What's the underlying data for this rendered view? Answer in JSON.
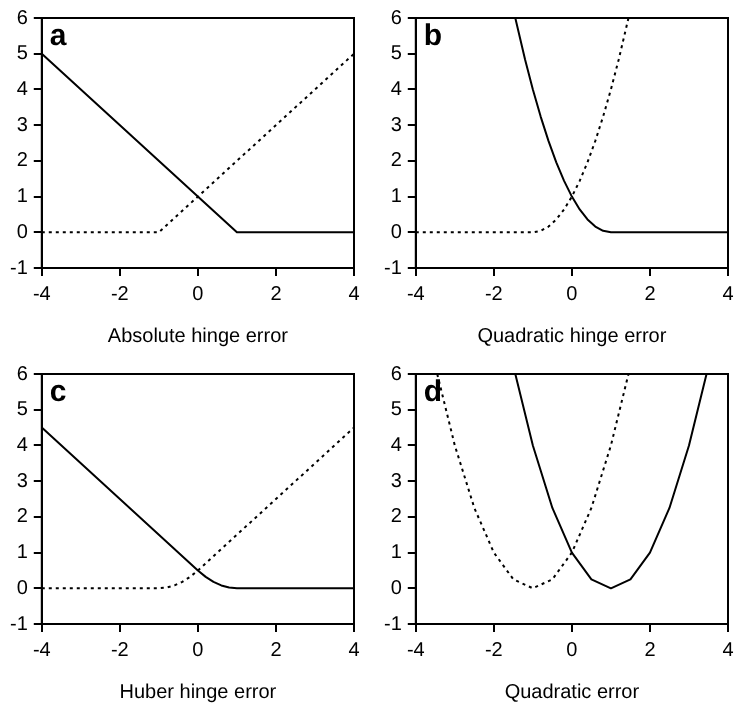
{
  "chart_data": [
    {
      "type": "line",
      "xlabel": "Absolute hinge error",
      "annotations": [
        "a"
      ],
      "xlim": [
        -4,
        4
      ],
      "ylim": [
        -1,
        6
      ],
      "xticks": [
        -4,
        -2,
        0,
        2,
        4
      ],
      "yticks": [
        -1,
        0,
        1,
        2,
        3,
        4,
        5,
        6
      ],
      "marker": "none",
      "line_style": "solid",
      "series": [
        {
          "color": "#000000",
          "x": [
            -4,
            1,
            4
          ],
          "values": [
            5,
            0,
            0
          ]
        },
        {
          "color": "#000000",
          "line_style": "dotted",
          "x": [
            -4,
            -1,
            4
          ],
          "values": [
            0,
            0,
            5
          ]
        }
      ]
    },
    {
      "type": "line",
      "xlabel": "Quadratic hinge error",
      "annotations": [
        "b"
      ],
      "xlim": [
        -4,
        4
      ],
      "ylim": [
        -1,
        6
      ],
      "xticks": [
        -4,
        -2,
        0,
        2,
        4
      ],
      "yticks": [
        -1,
        0,
        1,
        2,
        3,
        4,
        5,
        6
      ],
      "marker": "none",
      "line_style": "solid",
      "series": [
        {
          "color": "#000000",
          "x": [
            -1.45,
            -1.2,
            -1,
            -0.8,
            -0.6,
            -0.4,
            -0.2,
            0,
            0.2,
            0.4,
            0.6,
            0.8,
            1,
            4
          ],
          "values": [
            6,
            4.84,
            4,
            3.24,
            2.56,
            1.96,
            1.44,
            1,
            0.64,
            0.36,
            0.16,
            0.04,
            0,
            0
          ]
        },
        {
          "color": "#000000",
          "line_style": "dotted",
          "x": [
            -4,
            -1,
            -0.8,
            -0.6,
            -0.4,
            -0.2,
            0,
            0.2,
            0.4,
            0.6,
            0.8,
            1,
            1.2,
            1.45
          ],
          "values": [
            0,
            0,
            0.04,
            0.16,
            0.36,
            0.64,
            1,
            1.44,
            1.96,
            2.56,
            3.24,
            4,
            4.84,
            6
          ]
        }
      ]
    },
    {
      "type": "line",
      "xlabel": "Huber hinge error",
      "annotations": [
        "c"
      ],
      "xlim": [
        -4,
        4
      ],
      "ylim": [
        -1,
        6
      ],
      "xticks": [
        -4,
        -2,
        0,
        2,
        4
      ],
      "yticks": [
        -1,
        0,
        1,
        2,
        3,
        4,
        5,
        6
      ],
      "marker": "none",
      "line_style": "solid",
      "series": [
        {
          "color": "#000000",
          "x": [
            -4,
            0,
            0.2,
            0.4,
            0.6,
            0.8,
            1,
            4
          ],
          "values": [
            4.5,
            0.5,
            0.32,
            0.18,
            0.08,
            0.02,
            0,
            0
          ]
        },
        {
          "color": "#000000",
          "line_style": "dotted",
          "x": [
            -4,
            -1,
            -0.8,
            -0.6,
            -0.4,
            -0.2,
            0,
            4
          ],
          "values": [
            0,
            0,
            0.02,
            0.08,
            0.18,
            0.32,
            0.5,
            4.5
          ]
        }
      ]
    },
    {
      "type": "line",
      "xlabel": "Quadratic error",
      "annotations": [
        "d"
      ],
      "xlim": [
        -4,
        4
      ],
      "ylim": [
        -1,
        6
      ],
      "xticks": [
        -4,
        -2,
        0,
        2,
        4
      ],
      "yticks": [
        -1,
        0,
        1,
        2,
        3,
        4,
        5,
        6
      ],
      "marker": "none",
      "line_style": "solid",
      "series": [
        {
          "color": "#000000",
          "x": [
            -1.45,
            -1,
            -0.5,
            0,
            0.5,
            1,
            1.5,
            2,
            2.5,
            3,
            3.45
          ],
          "values": [
            6,
            4,
            2.25,
            1,
            0.25,
            0,
            0.25,
            1,
            2.25,
            4,
            6
          ]
        },
        {
          "color": "#000000",
          "line_style": "dotted",
          "x": [
            -3.45,
            -3,
            -2.5,
            -2,
            -1.5,
            -1,
            -0.5,
            0,
            0.5,
            1,
            1.45
          ],
          "values": [
            6,
            4,
            2.25,
            1,
            0.25,
            0,
            0.25,
            1,
            2.25,
            4,
            6
          ]
        }
      ]
    }
  ]
}
